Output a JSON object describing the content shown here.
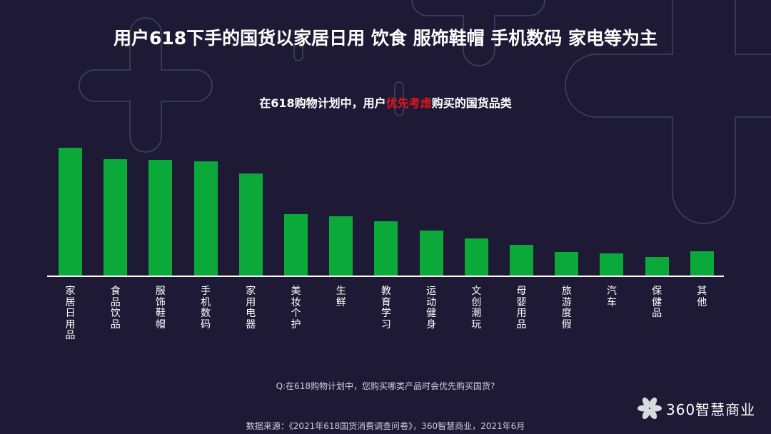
{
  "slide": {
    "title": "用户618下手的国货以家居日用 饮食 服饰鞋帽 手机数码 家电等为主",
    "subtitle_prefix": "在618购物计划中，用户",
    "subtitle_highlight": "优先考虑",
    "subtitle_suffix": "购买的国货品类",
    "question": "Q:在618购物计划中，您购买哪类产品时会优先购买国货?",
    "source": "数据来源：《2021年618国货消费调查问卷》，360智慧商业，2021年6月",
    "logo_text": "360智慧商业",
    "logo_icon": "flower-icon"
  },
  "colors": {
    "background": "#1e1a36",
    "bar": "#0aa93a",
    "highlight": "#e8141c",
    "deco_line": "#3e4460"
  },
  "chart_data": {
    "type": "bar",
    "title": "在618购物计划中，用户优先考虑购买的国货品类",
    "xlabel": "",
    "ylabel": "",
    "grid": false,
    "legend": "none",
    "value_note": "No axis or data labels shown; values are relative bar heights (px) estimated from the figure",
    "categories": [
      "家居日用品",
      "食品饮品",
      "服饰鞋帽",
      "手机数码",
      "家用电器",
      "美妆个护",
      "生鲜",
      "教育学习",
      "运动健身",
      "文创潮玩",
      "母婴用品",
      "旅游度假",
      "汽车",
      "保健品",
      "其他"
    ],
    "values": [
      179,
      163,
      162,
      160,
      143,
      86,
      83,
      76,
      63,
      52,
      43,
      33,
      31,
      26,
      34
    ],
    "ylim": [
      0,
      180
    ]
  }
}
